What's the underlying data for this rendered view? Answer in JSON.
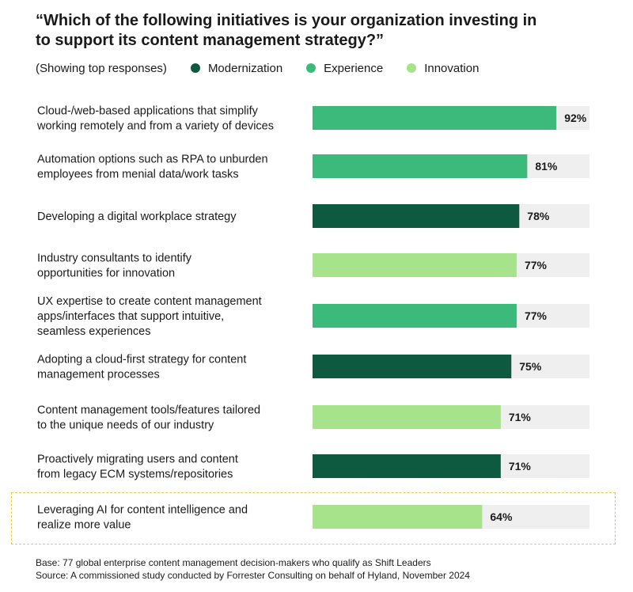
{
  "title": "“Which of the following initiatives is your organization investing in to support its content management strategy?”",
  "legend_note": "(Showing top responses)",
  "legend": [
    {
      "label": "Modernization",
      "color": "#0e5a41"
    },
    {
      "label": "Experience",
      "color": "#3cba7c"
    },
    {
      "label": "Innovation",
      "color": "#a6e38a"
    }
  ],
  "chart_data": {
    "type": "bar",
    "orientation": "horizontal",
    "xlim": [
      0,
      100
    ],
    "unit": "%",
    "track_color": "#efefef",
    "categories": [
      "Cloud-/web-based applications that simplify working remotely and from a variety of devices",
      "Automation options such as RPA to unburden employees from menial data/work tasks",
      "Developing a digital workplace strategy",
      "Industry consultants to identify opportunities for innovation",
      "UX expertise to create content management apps/interfaces that support intuitive, seamless experiences",
      "Adopting a cloud-first strategy for content management processes",
      "Content management tools/features tailored to the unique needs of our industry",
      "Proactively migrating users and content from legacy ECM systems/repositories",
      "Leveraging AI for content intelligence and realize more value"
    ],
    "label_lines": [
      [
        "Cloud-/web-based applications that simplify",
        "working remotely and from a variety of devices"
      ],
      [
        "Automation options such as RPA to unburden",
        "employees from menial data/work tasks"
      ],
      [
        "Developing a digital workplace strategy"
      ],
      [
        "Industry consultants to identify",
        "opportunities for innovation"
      ],
      [
        "UX expertise to create content management",
        "apps/interfaces that support intuitive,",
        "seamless experiences"
      ],
      [
        "Adopting a cloud-first strategy for content",
        "management processes"
      ],
      [
        "Content management tools/features tailored",
        "to the unique needs of our industry"
      ],
      [
        "Proactively migrating users and content",
        "from legacy ECM systems/repositories"
      ],
      [
        "Leveraging AI for content intelligence and",
        "realize more value"
      ]
    ],
    "values": [
      92,
      81,
      78,
      77,
      77,
      75,
      71,
      71,
      64
    ],
    "value_labels": [
      "92%",
      "81%",
      "78%",
      "77%",
      "77%",
      "75%",
      "71%",
      "71%",
      "64%"
    ],
    "groups": [
      "Experience",
      "Experience",
      "Modernization",
      "Innovation",
      "Experience",
      "Modernization",
      "Innovation",
      "Modernization",
      "Innovation"
    ],
    "highlighted": "Leveraging AI for content intelligence and realize more value"
  },
  "footnotes": [
    "Base: 77 global enterprise content management decision-makers who qualify as Shift Leaders",
    "Source: A commissioned study conducted by Forrester Consulting on behalf of Hyland, November 2024"
  ]
}
